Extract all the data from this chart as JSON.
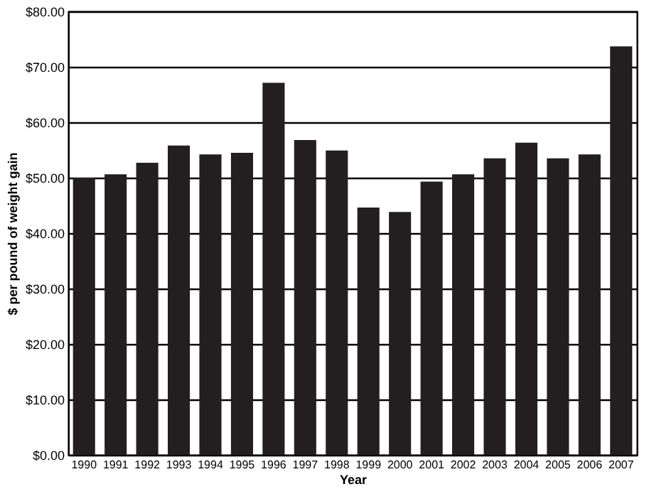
{
  "chart_data": {
    "type": "bar",
    "xlabel": "Year",
    "ylabel": "$ per pound of weight gain",
    "categories": [
      "1990",
      "1991",
      "1992",
      "1993",
      "1994",
      "1995",
      "1996",
      "1997",
      "1998",
      "1999",
      "2000",
      "2001",
      "2002",
      "2003",
      "2004",
      "2005",
      "2006",
      "2007"
    ],
    "values": [
      50.0,
      50.6,
      52.7,
      55.8,
      54.2,
      54.5,
      67.1,
      56.8,
      54.9,
      44.6,
      43.8,
      49.3,
      50.6,
      53.5,
      56.3,
      53.5,
      54.2,
      73.7
    ],
    "color": "#231f20",
    "ylim": [
      0,
      80
    ],
    "yticks": [
      {
        "value": 0,
        "label": "$0.00"
      },
      {
        "value": 10,
        "label": "$10.00"
      },
      {
        "value": 20,
        "label": "$20.00"
      },
      {
        "value": 30,
        "label": "$30.00"
      },
      {
        "value": 40,
        "label": "$40.00"
      },
      {
        "value": 50,
        "label": "$50.00"
      },
      {
        "value": 60,
        "label": "$60.00"
      },
      {
        "value": 70,
        "label": "$70.00"
      },
      {
        "value": 80,
        "label": "$80.00"
      }
    ],
    "grid": "y"
  }
}
